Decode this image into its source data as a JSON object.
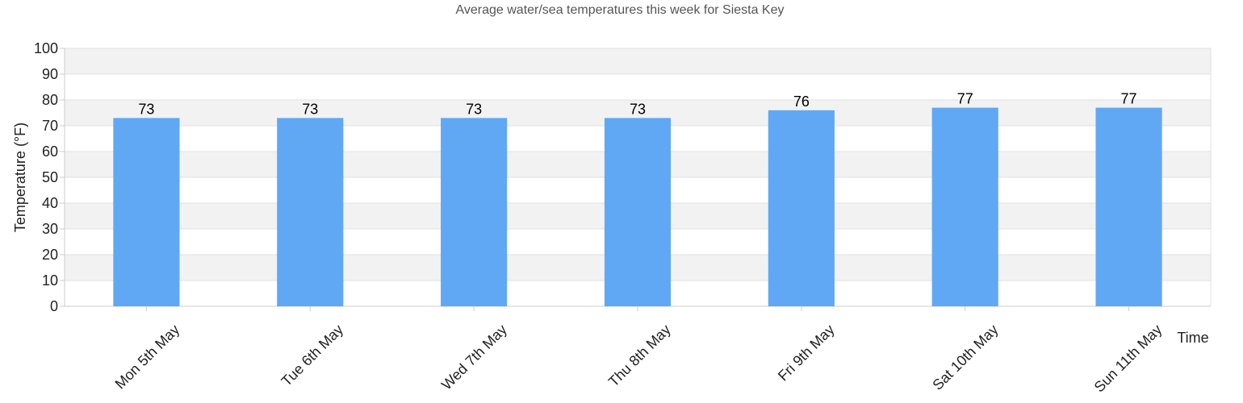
{
  "chart_data": {
    "type": "bar",
    "title": "Average water/sea temperatures this week for Siesta Key",
    "xlabel": "Time",
    "ylabel": "Temperature (°F)",
    "categories": [
      "Mon 5th May",
      "Tue 6th May",
      "Wed 7th May",
      "Thu 8th May",
      "Fri 9th May",
      "Sat 10th May",
      "Sun 11th May"
    ],
    "values": [
      73,
      73,
      73,
      73,
      76,
      77,
      77
    ],
    "ylim": [
      0,
      100
    ],
    "yticks": [
      "0",
      "10",
      "20",
      "30",
      "40",
      "50",
      "60",
      "70",
      "80",
      "90",
      "100"
    ],
    "grid": true,
    "legend": "none"
  },
  "colors": {
    "bar": "#60a8f4",
    "band": "#f2f2f2",
    "gridline": "#e0e0e0"
  }
}
